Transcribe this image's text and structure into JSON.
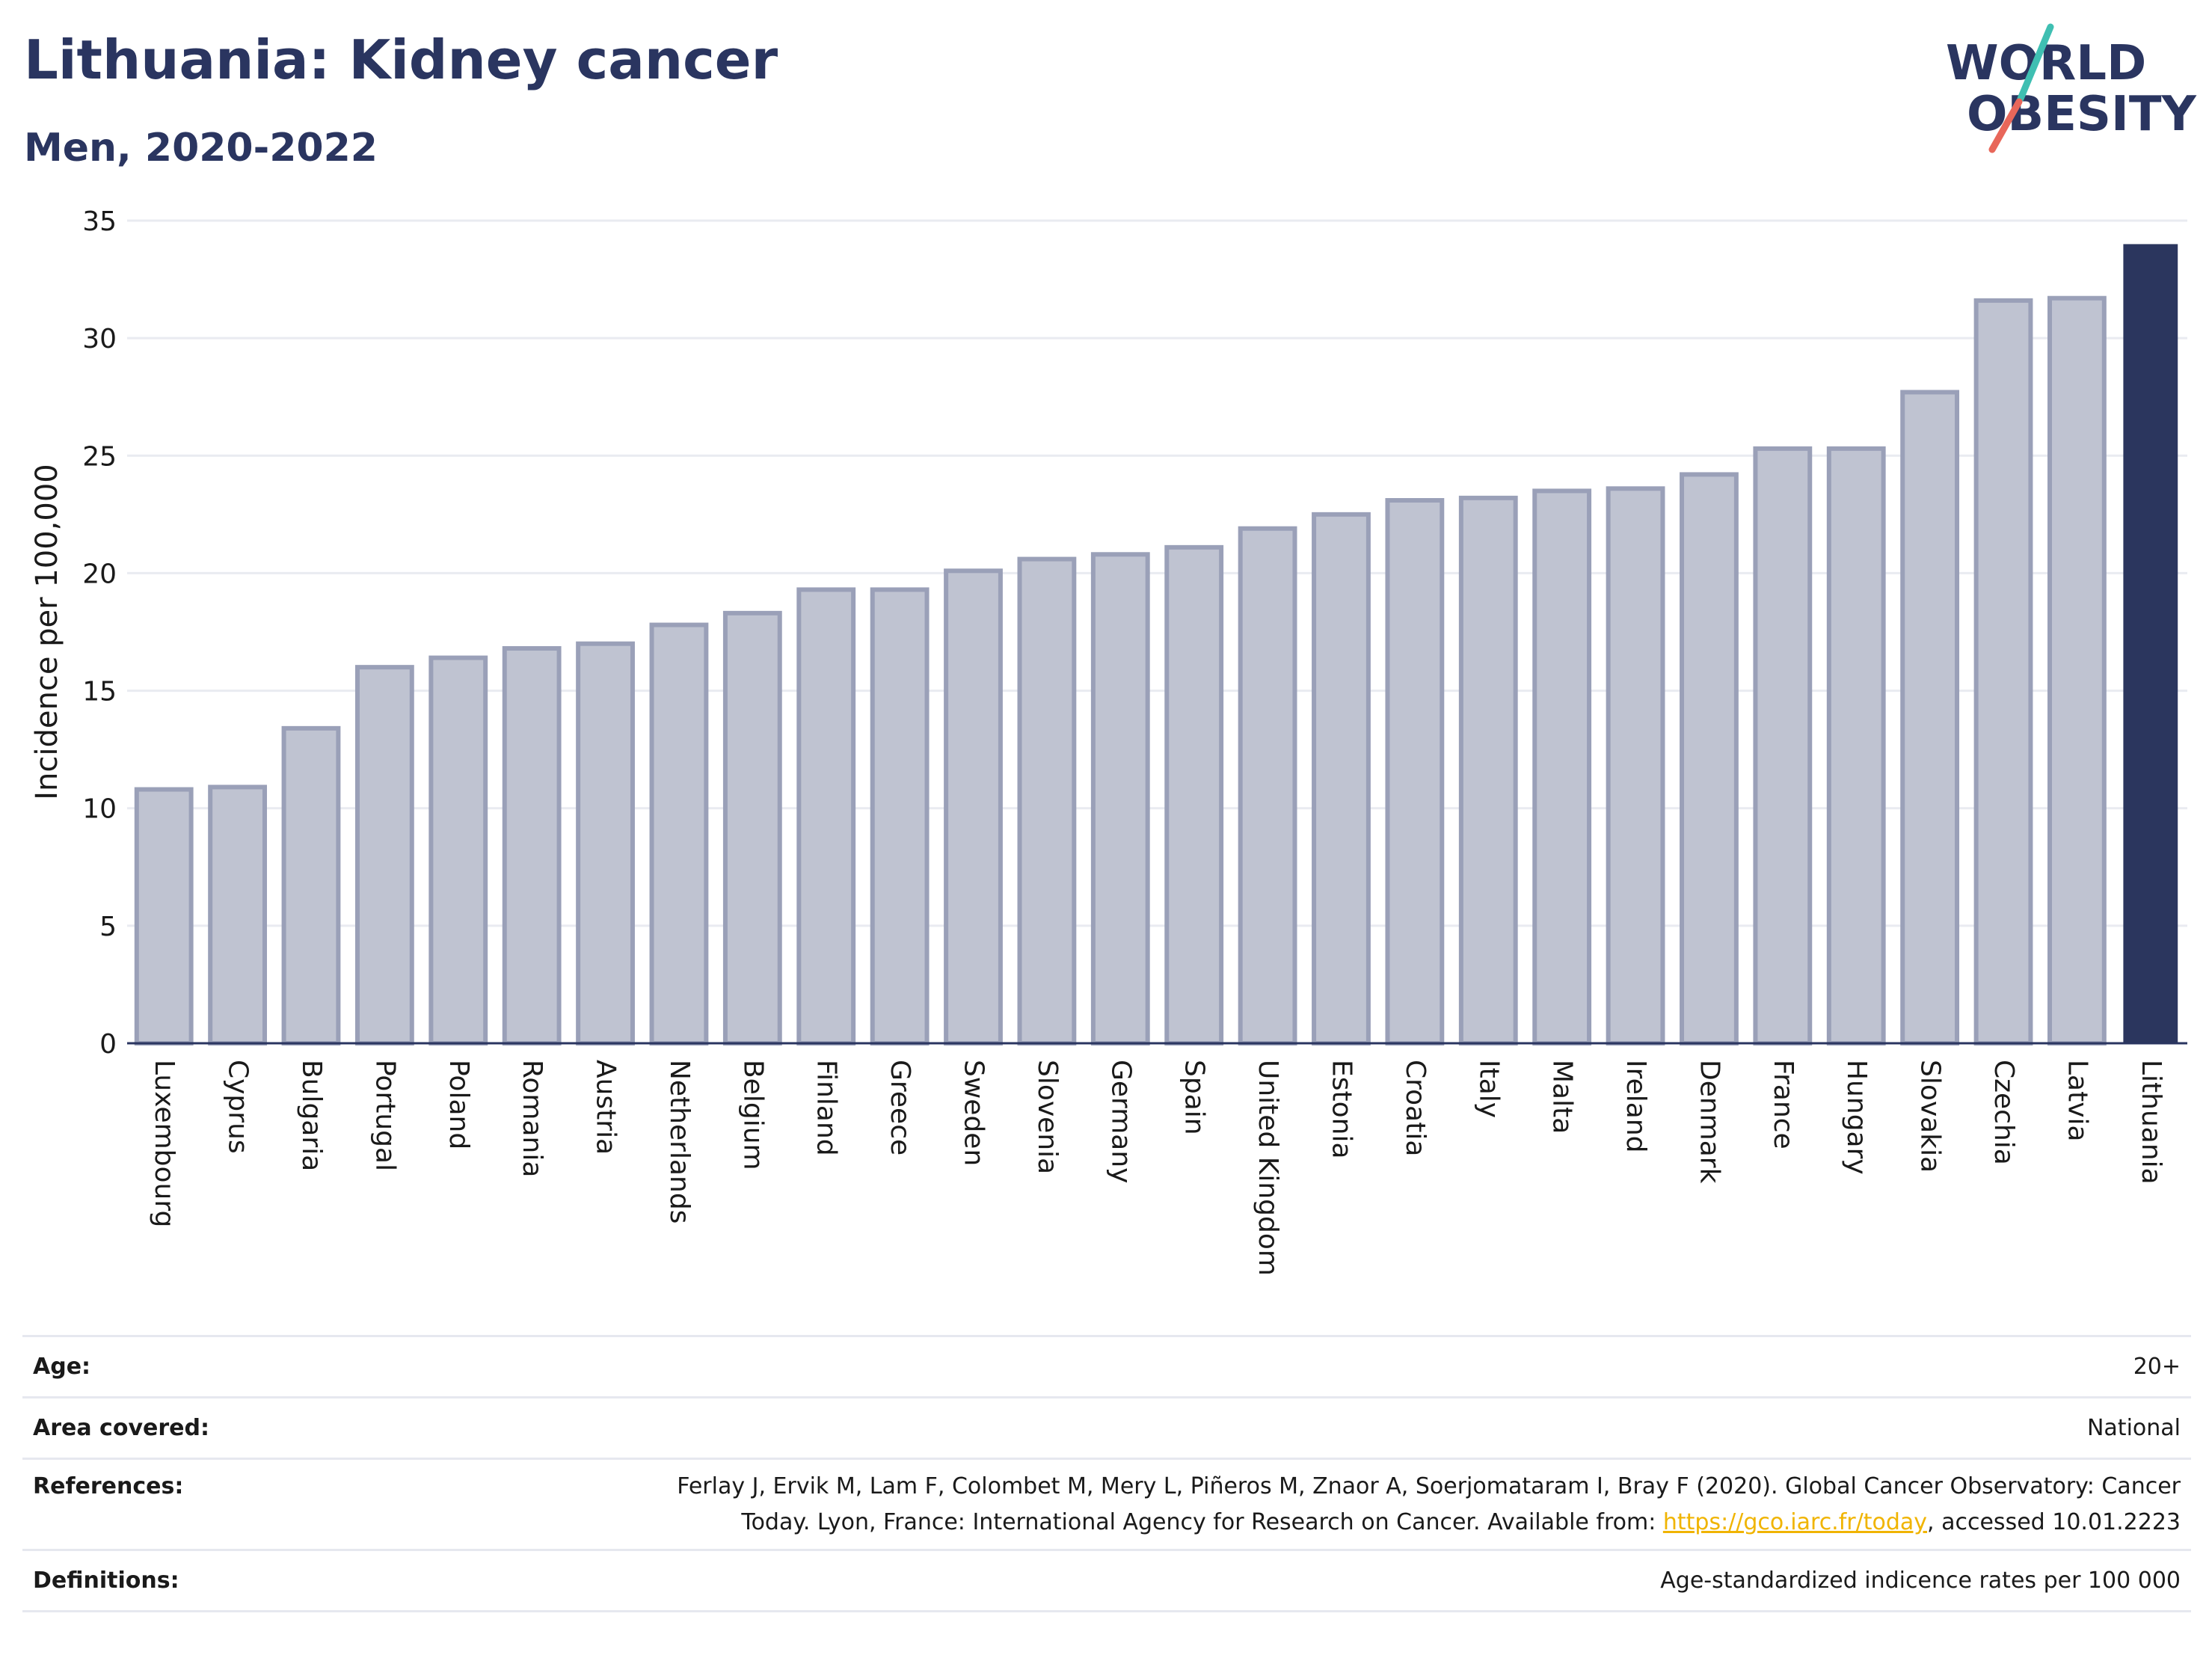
{
  "title": "Lithuania: Kidney cancer",
  "subtitle": "Men, 2020-2022",
  "logo": {
    "line1": "WORLD",
    "line2": "OBESITY"
  },
  "colors": {
    "highlight_bar": "#2b365e",
    "other_bar_fill": "#bfc3d1",
    "other_bar_stroke": "#9aa0b8",
    "text": "#2a3560",
    "link": "#f0b400",
    "logo_teal": "#3fbfb2",
    "logo_coral": "#e8675a"
  },
  "chart_data": {
    "type": "bar",
    "ylabel": "Incidence per 100,000",
    "ylim": [
      0,
      35
    ],
    "yticks": [
      0,
      5,
      10,
      15,
      20,
      25,
      30,
      35
    ],
    "grid": true,
    "highlight": "Lithuania",
    "categories": [
      "Luxembourg",
      "Cyprus",
      "Bulgaria",
      "Portugal",
      "Poland",
      "Romania",
      "Austria",
      "Netherlands",
      "Belgium",
      "Finland",
      "Greece",
      "Sweden",
      "Slovenia",
      "Germany",
      "Spain",
      "United Kingdom",
      "Estonia",
      "Croatia",
      "Italy",
      "Malta",
      "Ireland",
      "Denmark",
      "France",
      "Hungary",
      "Slovakia",
      "Czechia",
      "Latvia",
      "Lithuania"
    ],
    "values": [
      10.8,
      10.9,
      13.4,
      16.0,
      16.4,
      16.8,
      17.0,
      17.8,
      18.3,
      19.3,
      19.3,
      20.1,
      20.6,
      20.8,
      21.1,
      21.9,
      22.5,
      23.1,
      23.2,
      23.5,
      23.6,
      24.2,
      25.3,
      25.3,
      27.7,
      31.6,
      31.7,
      34.0
    ]
  },
  "meta": {
    "age": {
      "label": "Age:",
      "value": "20+"
    },
    "area": {
      "label": "Area covered:",
      "value": "National"
    },
    "references": {
      "label": "References:",
      "line1": "Ferlay J, Ervik M, Lam F, Colombet M, Mery L, Piñeros M, Znaor A, Soerjomataram I, Bray F (2020). Global Cancer Observatory: Cancer",
      "line2_prefix": "Today. Lyon, France: International Agency for Research on Cancer. Available from: ",
      "link": "https://gco.iarc.fr/today",
      "line2_suffix": ", accessed 10.01.2223"
    },
    "definitions": {
      "label": "Definitions:",
      "value": "Age-standardized indicence rates per 100 000"
    }
  }
}
